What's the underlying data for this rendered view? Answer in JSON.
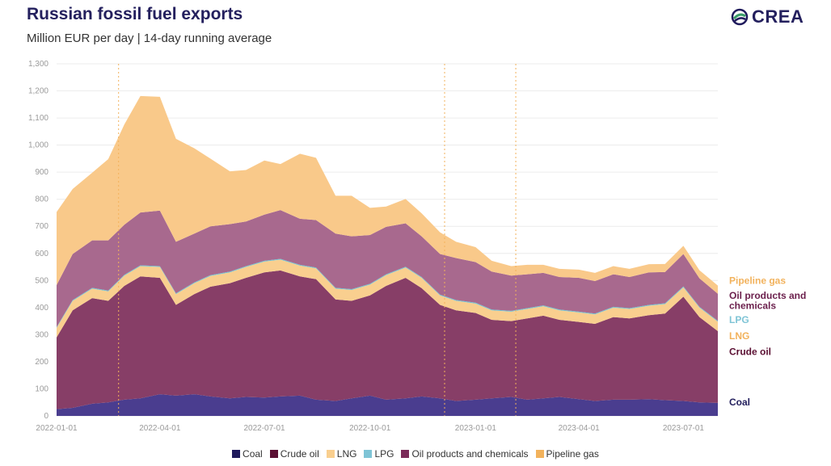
{
  "title": "Russian fossil fuel exports",
  "subtitle": "Million EUR per day | 14-day running average",
  "logo_text": "CREA",
  "chart_data": {
    "type": "area",
    "stacked": true,
    "title": "Russian fossil fuel exports",
    "subtitle": "Million EUR per day | 14-day running average",
    "x_start": "2022-01-01",
    "x_end": "2023-07-31",
    "xticks": [
      "2022-01-01",
      "2022-04-01",
      "2022-07-01",
      "2022-10-01",
      "2023-01-01",
      "2023-04-01",
      "2023-07-01"
    ],
    "ylim": [
      0,
      1300
    ],
    "yticks": [
      0,
      100,
      200,
      300,
      400,
      500,
      600,
      700,
      800,
      900,
      1000,
      1100,
      1200,
      1300
    ],
    "ytick_labels": [
      "0",
      "100",
      "200",
      "300",
      "400",
      "500",
      "600",
      "700",
      "800",
      "900",
      "1,000",
      "1,100",
      "1,200",
      "1,300"
    ],
    "grid": true,
    "legend_position": "bottom",
    "vlines": [
      "2022-02-24",
      "2022-12-05",
      "2023-02-05"
    ],
    "x": [
      "2022-01-01",
      "2022-01-15",
      "2022-02-01",
      "2022-02-15",
      "2022-03-01",
      "2022-03-15",
      "2022-04-01",
      "2022-04-15",
      "2022-05-01",
      "2022-05-15",
      "2022-06-01",
      "2022-06-15",
      "2022-07-01",
      "2022-07-15",
      "2022-08-01",
      "2022-08-15",
      "2022-09-01",
      "2022-09-15",
      "2022-10-01",
      "2022-10-15",
      "2022-11-01",
      "2022-11-15",
      "2022-12-01",
      "2022-12-15",
      "2023-01-01",
      "2023-01-15",
      "2023-02-01",
      "2023-02-15",
      "2023-03-01",
      "2023-03-15",
      "2023-04-01",
      "2023-04-15",
      "2023-05-01",
      "2023-05-15",
      "2023-06-01",
      "2023-06-15",
      "2023-07-01",
      "2023-07-15",
      "2023-07-31"
    ],
    "series": [
      {
        "name": "Coal",
        "color": "#4a3d8f",
        "values": [
          25,
          30,
          45,
          50,
          60,
          65,
          80,
          75,
          80,
          72,
          65,
          70,
          68,
          72,
          75,
          60,
          55,
          65,
          75,
          60,
          65,
          72,
          65,
          55,
          60,
          65,
          70,
          60,
          65,
          70,
          62,
          55,
          60,
          60,
          62,
          58,
          55,
          50,
          48
        ]
      },
      {
        "name": "Crude oil",
        "color": "#873e67",
        "values": [
          265,
          360,
          390,
          375,
          420,
          450,
          430,
          335,
          370,
          405,
          425,
          440,
          462,
          465,
          440,
          445,
          375,
          360,
          370,
          420,
          445,
          400,
          345,
          335,
          320,
          290,
          280,
          300,
          305,
          285,
          285,
          285,
          305,
          300,
          310,
          320,
          385,
          315,
          265
        ]
      },
      {
        "name": "LNG",
        "color": "#f9cf8f",
        "values": [
          35,
          35,
          35,
          35,
          38,
          38,
          40,
          40,
          40,
          40,
          40,
          40,
          40,
          40,
          40,
          40,
          40,
          40,
          40,
          40,
          38,
          38,
          35,
          35,
          35,
          35,
          35,
          35,
          35,
          35,
          35,
          35,
          35,
          35,
          35,
          35,
          35,
          35,
          35
        ]
      },
      {
        "name": "LPG",
        "color": "#6ec3d3",
        "values": [
          3,
          3,
          3,
          3,
          3,
          3,
          3,
          3,
          3,
          3,
          3,
          3,
          3,
          3,
          3,
          3,
          3,
          3,
          3,
          3,
          3,
          3,
          3,
          3,
          3,
          3,
          3,
          3,
          3,
          3,
          3,
          3,
          3,
          3,
          3,
          3,
          3,
          3,
          3
        ]
      },
      {
        "name": "Oil products and chemicals",
        "color": "#a8698e",
        "values": [
          155,
          170,
          175,
          185,
          185,
          195,
          205,
          190,
          180,
          180,
          175,
          165,
          170,
          180,
          170,
          175,
          200,
          195,
          180,
          175,
          160,
          150,
          150,
          155,
          150,
          140,
          130,
          125,
          120,
          120,
          125,
          120,
          120,
          115,
          120,
          115,
          120,
          105,
          100
        ]
      },
      {
        "name": "Pipeline gas",
        "color": "#f9c98a",
        "values": [
          270,
          240,
          250,
          300,
          370,
          430,
          420,
          380,
          315,
          250,
          195,
          190,
          200,
          170,
          240,
          230,
          140,
          150,
          100,
          75,
          90,
          85,
          80,
          60,
          55,
          40,
          35,
          35,
          30,
          30,
          30,
          30,
          30,
          30,
          30,
          30,
          30,
          30,
          30
        ]
      }
    ],
    "end_labels": [
      {
        "text": "Pipeline gas",
        "color": "#f2b25c",
        "value": 500
      },
      {
        "text": "Oil products and",
        "color": "#6b1f4c",
        "value": 445
      },
      {
        "text": "chemicals",
        "color": "#6b1f4c",
        "value": 407
      },
      {
        "text": "LPG",
        "color": "#7fc4d6",
        "value": 355
      },
      {
        "text": "LNG",
        "color": "#f2b25c",
        "value": 295
      },
      {
        "text": "Crude oil",
        "color": "#5a0f32",
        "value": 237
      },
      {
        "text": "Coal",
        "color": "#24205e",
        "value": 50
      }
    ]
  },
  "legend": [
    {
      "label": "Coal",
      "color": "#1f1a5c"
    },
    {
      "label": "Crude oil",
      "color": "#5a0f32"
    },
    {
      "label": "LNG",
      "color": "#f9cf8f"
    },
    {
      "label": "LPG",
      "color": "#7fc4d6"
    },
    {
      "label": "Oil products and chemicals",
      "color": "#7a2a58"
    },
    {
      "label": "Pipeline gas",
      "color": "#f2b25c"
    }
  ]
}
